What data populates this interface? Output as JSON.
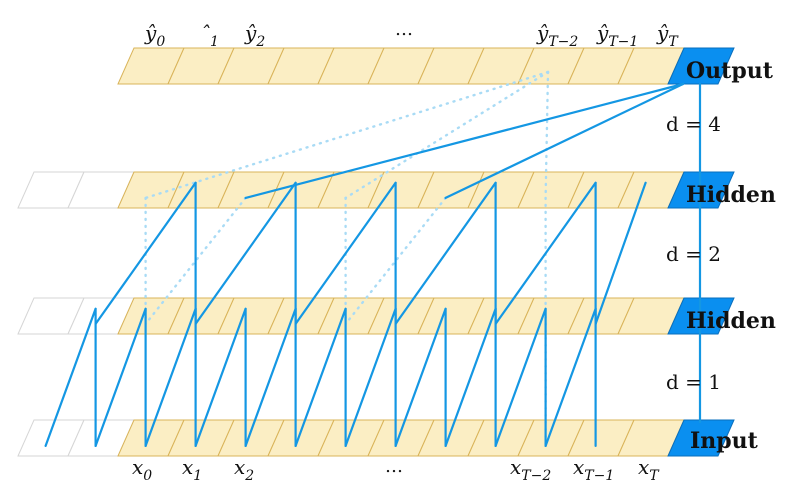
{
  "layers": [
    {
      "name": "Output",
      "row": 3
    },
    {
      "name": "Hidden",
      "row": 2
    },
    {
      "name": "Hidden",
      "row": 1
    },
    {
      "name": "Input",
      "row": 0
    }
  ],
  "dilations": [
    "d = 4",
    "d = 2",
    "d = 1"
  ],
  "output_labels": [
    {
      "base": "ŷ",
      "sub": "0"
    },
    {
      "base": "ˆ",
      "sub": "1"
    },
    {
      "base": "ŷ",
      "sub": "2"
    },
    {
      "base": "…",
      "sub": ""
    },
    {
      "base": "ŷ",
      "sub": "T−2"
    },
    {
      "base": "ŷ",
      "sub": "T−1"
    },
    {
      "base": "ŷ",
      "sub": "T"
    }
  ],
  "input_labels": [
    {
      "base": "x",
      "sub": "0"
    },
    {
      "base": "x",
      "sub": "1"
    },
    {
      "base": "x",
      "sub": "2"
    },
    {
      "base": "…",
      "sub": ""
    },
    {
      "base": "x",
      "sub": "T−2"
    },
    {
      "base": "x",
      "sub": "T−1"
    },
    {
      "base": "x",
      "sub": "T"
    }
  ],
  "colors": {
    "active_cell": "#fbeec4",
    "current_cell": "#0a8ff0",
    "edge": "#1497e3",
    "dotted_edge": "#a9dbf5"
  }
}
